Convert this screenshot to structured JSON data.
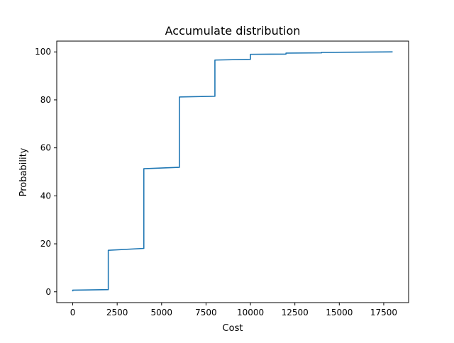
{
  "chart_data": {
    "type": "line",
    "title": "Accumulate distribution",
    "xlabel": "Cost",
    "ylabel": "Probability",
    "xlim": [
      -900,
      18900
    ],
    "ylim": [
      -4.5,
      104.5
    ],
    "x_ticks": [
      0,
      2500,
      5000,
      7500,
      10000,
      12500,
      15000,
      17500
    ],
    "y_ticks": [
      0,
      20,
      40,
      60,
      80,
      100
    ],
    "grid": false,
    "color": "#1f77b4",
    "series": [
      {
        "x": [
          0,
          0,
          2000,
          2000,
          4000,
          4000,
          6000,
          6000,
          8000,
          8000,
          10000,
          10000,
          12000,
          12000,
          14000,
          14000,
          18000
        ],
        "y": [
          0.2,
          0.7,
          0.9,
          17.3,
          18.1,
          51.3,
          51.9,
          81.2,
          81.5,
          96.6,
          96.9,
          99.0,
          99.1,
          99.5,
          99.6,
          99.8,
          100.0
        ]
      }
    ]
  }
}
